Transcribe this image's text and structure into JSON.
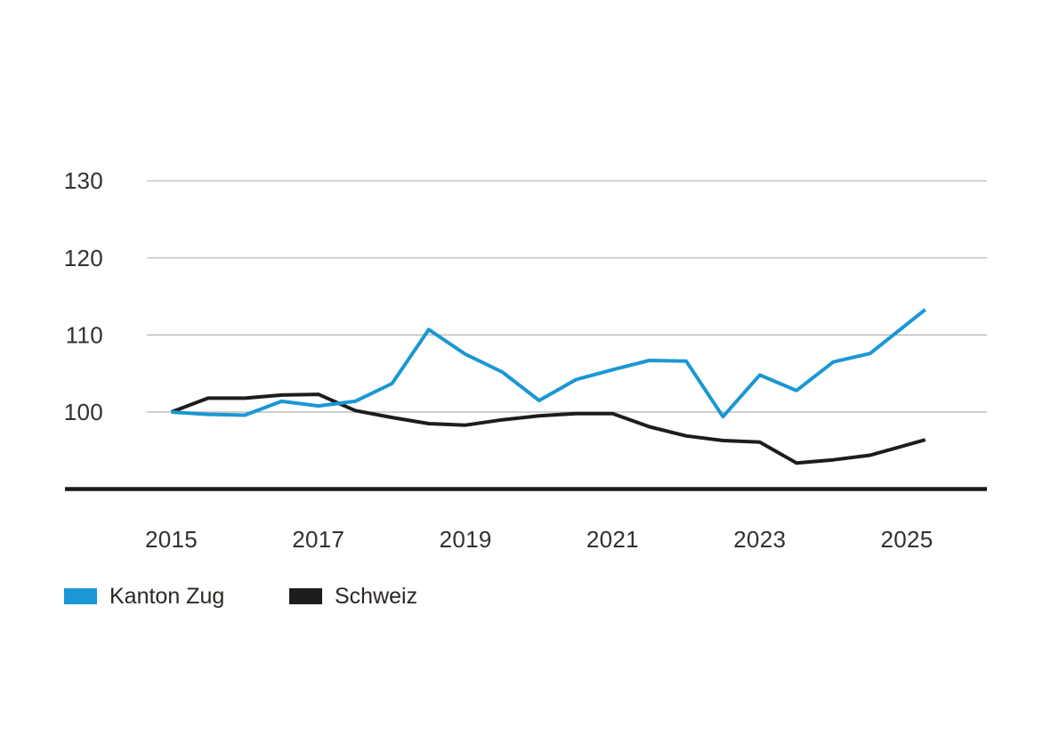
{
  "chart_data": {
    "type": "line",
    "title": "",
    "xlabel": "",
    "ylabel": "",
    "x": [
      2015.0,
      2015.5,
      2016.0,
      2016.5,
      2017.0,
      2017.5,
      2018.0,
      2018.5,
      2019.0,
      2019.5,
      2020.0,
      2020.5,
      2021.0,
      2021.5,
      2022.0,
      2022.5,
      2023.0,
      2023.5,
      2024.0,
      2024.5,
      2025.25
    ],
    "series": [
      {
        "name": "Kanton Zug",
        "color": "#1a97d4",
        "values": [
          100.0,
          99.7,
          99.6,
          101.4,
          100.8,
          101.4,
          103.7,
          110.7,
          107.5,
          105.2,
          101.5,
          104.2,
          105.5,
          106.7,
          106.6,
          99.4,
          104.8,
          102.8,
          106.5,
          107.6,
          113.3
        ]
      },
      {
        "name": "Schweiz",
        "color": "#1d1d1b",
        "values": [
          100.0,
          101.8,
          101.8,
          102.2,
          102.3,
          100.2,
          99.3,
          98.5,
          98.3,
          99.0,
          99.5,
          99.8,
          99.8,
          98.1,
          96.9,
          96.3,
          96.1,
          93.4,
          93.8,
          94.4,
          96.4
        ]
      }
    ],
    "x_ticks": [
      2015,
      2017,
      2019,
      2021,
      2023,
      2025
    ],
    "y_ticks": [
      100,
      110,
      120,
      130
    ],
    "ylim": [
      90,
      133.5
    ],
    "grid": "horizontal-gridlines-on",
    "legend_position": "bottom-left",
    "colors": {
      "gridline": "#b2b2b2",
      "axis_line": "#1a1a1a",
      "tick_text": "#32302e"
    }
  }
}
